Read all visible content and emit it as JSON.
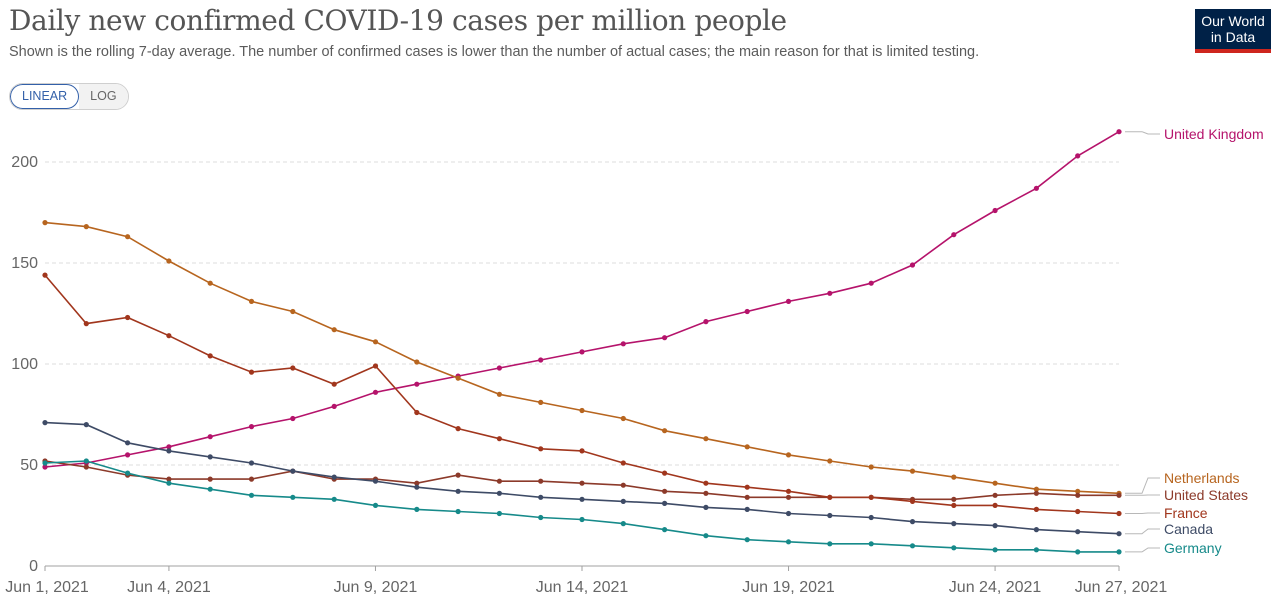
{
  "header": {
    "title": "Daily new confirmed COVID-19 cases per million people",
    "subtitle": "Shown is the rolling 7-day average. The number of confirmed cases is lower than the number of actual cases; the main reason for that is limited testing."
  },
  "logo": {
    "line1": "Our World",
    "line2": "in Data",
    "bg_color": "#002147",
    "accent_color": "#ce261e"
  },
  "scale_toggle": {
    "linear_label": "LINEAR",
    "log_label": "LOG",
    "selected": "LINEAR"
  },
  "chart_data": {
    "type": "line",
    "title": "Daily new confirmed COVID-19 cases per million people",
    "x": [
      "2021-06-01",
      "2021-06-02",
      "2021-06-03",
      "2021-06-04",
      "2021-06-05",
      "2021-06-06",
      "2021-06-07",
      "2021-06-08",
      "2021-06-09",
      "2021-06-10",
      "2021-06-11",
      "2021-06-12",
      "2021-06-13",
      "2021-06-14",
      "2021-06-15",
      "2021-06-16",
      "2021-06-17",
      "2021-06-18",
      "2021-06-19",
      "2021-06-20",
      "2021-06-21",
      "2021-06-22",
      "2021-06-23",
      "2021-06-24",
      "2021-06-25",
      "2021-06-26",
      "2021-06-27"
    ],
    "x_ticks": [
      {
        "date": "2021-06-01",
        "label": "Jun 1, 2021"
      },
      {
        "date": "2021-06-04",
        "label": "Jun 4, 2021"
      },
      {
        "date": "2021-06-09",
        "label": "Jun 9, 2021"
      },
      {
        "date": "2021-06-14",
        "label": "Jun 14, 2021"
      },
      {
        "date": "2021-06-19",
        "label": "Jun 19, 2021"
      },
      {
        "date": "2021-06-24",
        "label": "Jun 24, 2021"
      },
      {
        "date": "2021-06-27",
        "label": "Jun 27, 2021"
      }
    ],
    "y_ticks": [
      0,
      50,
      100,
      150,
      200
    ],
    "ylim": [
      0,
      215
    ],
    "grid": true,
    "legend": "right-end labels",
    "series": [
      {
        "name": "United Kingdom",
        "color": "#b5136b",
        "values": [
          49,
          51,
          55,
          59,
          64,
          69,
          73,
          79,
          86,
          90,
          94,
          98,
          102,
          106,
          110,
          113,
          121,
          126,
          131,
          135,
          140,
          149,
          164,
          176,
          187,
          203,
          215
        ]
      },
      {
        "name": "Netherlands",
        "color": "#b7651f",
        "values": [
          170,
          168,
          163,
          151,
          140,
          131,
          126,
          117,
          111,
          101,
          93,
          85,
          81,
          77,
          73,
          67,
          63,
          59,
          55,
          52,
          49,
          47,
          44,
          41,
          38,
          37,
          36
        ]
      },
      {
        "name": "United States",
        "color": "#8c3a2a",
        "values": [
          52,
          49,
          45,
          43,
          43,
          43,
          47,
          43,
          43,
          41,
          45,
          42,
          42,
          41,
          40,
          37,
          36,
          34,
          34,
          34,
          34,
          33,
          33,
          35,
          36,
          35,
          35
        ]
      },
      {
        "name": "France",
        "color": "#a1361d",
        "values": [
          144,
          120,
          123,
          114,
          104,
          96,
          98,
          90,
          99,
          76,
          68,
          63,
          58,
          57,
          51,
          46,
          41,
          39,
          37,
          34,
          34,
          32,
          30,
          30,
          28,
          27,
          26
        ]
      },
      {
        "name": "Canada",
        "color": "#3e4b66",
        "values": [
          71,
          70,
          61,
          57,
          54,
          51,
          47,
          44,
          42,
          39,
          37,
          36,
          34,
          33,
          32,
          31,
          29,
          28,
          26,
          25,
          24,
          22,
          21,
          20,
          18,
          17,
          16
        ]
      },
      {
        "name": "Germany",
        "color": "#168a8a",
        "values": [
          51,
          52,
          46,
          41,
          38,
          35,
          34,
          33,
          30,
          28,
          27,
          26,
          24,
          23,
          21,
          18,
          15,
          13,
          12,
          11,
          11,
          10,
          9,
          8,
          8,
          7,
          7
        ]
      }
    ]
  }
}
